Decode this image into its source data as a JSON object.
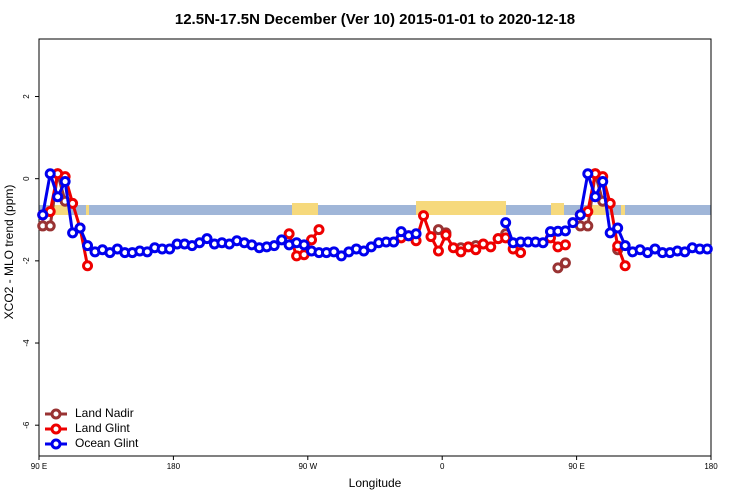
{
  "chart_data": {
    "type": "line",
    "title": "12.5N-17.5N December (Ver 10)   2015-01-01 to 2020-12-18",
    "xlabel": "Longitude",
    "ylabel": "XCO2 - MLO trend (ppm)",
    "xlim": [
      90,
      540
    ],
    "ylim": [
      -6.75,
      3.4
    ],
    "xticks": [
      {
        "value": 90,
        "label": "90 E"
      },
      180,
      {
        "value": 270,
        "label": "90 W"
      },
      {
        "value": 360,
        "label": "0"
      },
      {
        "value": 450,
        "label": "90 E"
      },
      {
        "value": 540,
        "label": "180"
      }
    ],
    "yticks": [
      -6,
      -4,
      -2,
      0,
      2
    ],
    "legend": "lower left",
    "x": [
      92.5,
      97.5,
      102.5,
      107.5,
      112.5,
      117.5,
      122.5,
      127.5,
      132.5,
      137.5,
      142.5,
      147.5,
      152.5,
      157.5,
      162.5,
      167.5,
      172.5,
      177.5,
      182.5,
      187.5,
      192.5,
      197.5,
      202.5,
      207.5,
      212.5,
      217.5,
      222.5,
      227.5,
      232.5,
      237.5,
      242.5,
      247.5,
      252.5,
      257.5,
      262.5,
      267.5,
      272.5,
      277.5,
      282.5,
      287.5,
      292.5,
      297.5,
      302.5,
      307.5,
      312.5,
      317.5,
      322.5,
      327.5,
      332.5,
      337.5,
      342.5,
      347.5,
      352.5,
      357.5,
      362.5,
      367.5,
      372.5,
      377.5,
      382.5,
      387.5,
      392.5,
      397.5,
      402.5,
      407.5,
      412.5,
      417.5,
      422.5,
      427.5,
      432.5,
      437.5,
      442.5,
      447.5,
      452.5,
      457.5,
      462.5,
      467.5,
      472.5,
      477.5,
      482.5,
      487.5,
      492.5,
      497.5,
      502.5,
      507.5,
      512.5,
      517.5,
      522.5,
      527.5,
      532.5,
      537.5
    ],
    "series": [
      {
        "name": "Land Nadir",
        "color": "#993333",
        "values": [
          -1.15,
          -1.15,
          0.12,
          -0.55,
          null,
          null,
          null,
          null,
          null,
          null,
          null,
          null,
          null,
          null,
          null,
          null,
          null,
          null,
          null,
          null,
          null,
          null,
          null,
          null,
          null,
          null,
          null,
          null,
          null,
          null,
          null,
          null,
          null,
          null,
          null,
          null,
          null,
          null,
          null,
          null,
          null,
          null,
          null,
          null,
          null,
          null,
          null,
          null,
          null,
          null,
          null,
          null,
          null,
          -1.24,
          -1.32,
          null,
          -1.68,
          null,
          -1.63,
          null,
          null,
          -1.46,
          -1.34,
          null,
          null,
          null,
          null,
          null,
          null,
          -2.17,
          -2.05,
          null,
          -1.15,
          -1.15,
          0.12,
          -0.55,
          null,
          -1.73,
          null,
          null,
          null,
          null,
          null,
          null,
          null,
          null,
          null,
          null,
          null,
          null
        ]
      },
      {
        "name": "Land Glint",
        "color": "#ee0000",
        "values": [
          -0.88,
          -0.8,
          0.12,
          0.05,
          -0.6,
          -1.2,
          -2.12,
          null,
          null,
          null,
          null,
          null,
          null,
          null,
          null,
          null,
          null,
          null,
          null,
          null,
          null,
          null,
          null,
          null,
          null,
          null,
          null,
          null,
          null,
          null,
          null,
          null,
          null,
          -1.34,
          -1.88,
          -1.85,
          -1.49,
          -1.24,
          null,
          null,
          null,
          null,
          null,
          null,
          null,
          null,
          null,
          null,
          -1.44,
          -1.39,
          -1.51,
          -0.9,
          -1.41,
          -1.76,
          -1.37,
          -1.68,
          -1.78,
          -1.66,
          -1.73,
          -1.59,
          -1.66,
          -1.46,
          -1.44,
          -1.71,
          -1.8,
          null,
          null,
          null,
          -1.44,
          -1.66,
          -1.61,
          null,
          -0.88,
          -0.8,
          0.12,
          0.05,
          -0.6,
          -1.64,
          -2.12,
          null,
          null,
          null,
          null,
          null,
          null,
          null,
          null,
          null,
          null,
          null
        ]
      },
      {
        "name": "Ocean Glint",
        "color": "#0000ee",
        "values": [
          -0.88,
          0.12,
          -0.44,
          -0.07,
          -1.32,
          -1.2,
          -1.63,
          -1.78,
          -1.73,
          -1.8,
          -1.71,
          -1.8,
          -1.8,
          -1.76,
          -1.78,
          -1.68,
          -1.71,
          -1.71,
          -1.59,
          -1.59,
          -1.63,
          -1.56,
          -1.46,
          -1.59,
          -1.56,
          -1.59,
          -1.51,
          -1.56,
          -1.61,
          -1.68,
          -1.66,
          -1.63,
          -1.49,
          -1.61,
          -1.56,
          -1.61,
          -1.76,
          -1.8,
          -1.8,
          -1.78,
          -1.88,
          -1.78,
          -1.71,
          -1.76,
          -1.66,
          -1.56,
          -1.54,
          -1.54,
          -1.29,
          -1.39,
          -1.34,
          null,
          null,
          null,
          null,
          null,
          null,
          null,
          null,
          null,
          null,
          null,
          -1.07,
          -1.56,
          -1.54,
          -1.54,
          -1.54,
          -1.56,
          -1.29,
          -1.28,
          -1.27,
          -1.07,
          -0.88,
          0.12,
          -0.44,
          -0.07,
          -1.32,
          -1.2,
          -1.63,
          -1.78,
          -1.73,
          -1.8,
          -1.71,
          -1.8,
          -1.8,
          -1.76,
          -1.78,
          -1.68,
          -1.71,
          -1.71
        ]
      }
    ]
  }
}
